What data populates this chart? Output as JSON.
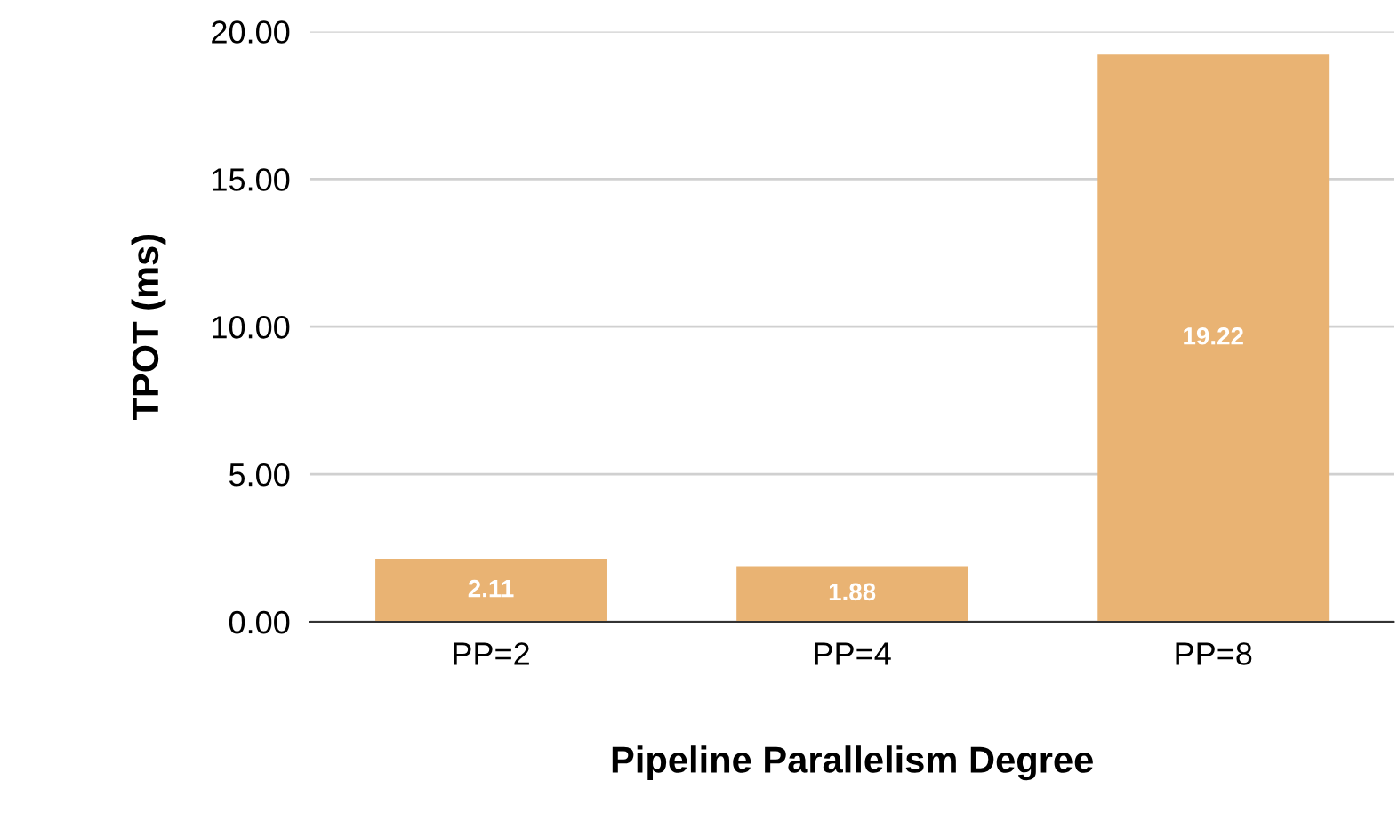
{
  "chart_data": {
    "type": "bar",
    "xlabel": "Pipeline Parallelism Degree",
    "ylabel": "TPOT (ms)",
    "categories": [
      "PP=2",
      "PP=4",
      "PP=8"
    ],
    "values": [
      2.11,
      1.88,
      19.22
    ],
    "color": "#e9b373",
    "ylim": [
      0,
      20
    ],
    "yticks": [
      {
        "value": 0,
        "label": "0.00"
      },
      {
        "value": 5,
        "label": "5.00"
      },
      {
        "value": 10,
        "label": "10.00"
      },
      {
        "value": 15,
        "label": "15.00"
      },
      {
        "value": 20,
        "label": "20.00"
      }
    ],
    "grid": "y",
    "data_labels": true
  }
}
